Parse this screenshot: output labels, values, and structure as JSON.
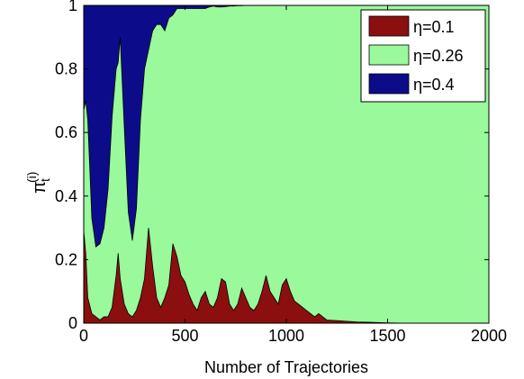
{
  "chart_data": {
    "type": "area",
    "stacked": true,
    "xlabel": "Number of Trajectories",
    "ylabel": "π",
    "ylabel_sub": "t",
    "ylabel_sup": "(i)",
    "xlim": [
      0,
      2000
    ],
    "ylim": [
      0,
      1
    ],
    "xticks": [
      0,
      500,
      1000,
      1500,
      2000
    ],
    "yticks": [
      0,
      0.2,
      0.4,
      0.6,
      0.8,
      1
    ],
    "ytick_labels": [
      "0",
      "0.2",
      "0.4",
      "0.6",
      "0.8",
      "1"
    ],
    "grid": false,
    "legend_position": "top-right",
    "x": [
      0,
      10,
      20,
      40,
      60,
      80,
      100,
      120,
      140,
      160,
      170,
      180,
      200,
      220,
      240,
      260,
      280,
      300,
      320,
      340,
      360,
      380,
      400,
      420,
      440,
      460,
      480,
      500,
      520,
      540,
      560,
      580,
      600,
      620,
      640,
      660,
      680,
      700,
      720,
      740,
      760,
      780,
      800,
      820,
      840,
      860,
      880,
      900,
      920,
      940,
      960,
      980,
      1000,
      1020,
      1040,
      1060,
      1080,
      1100,
      1120,
      1140,
      1160,
      1180,
      1200,
      1250,
      1300,
      1350,
      1400,
      1450,
      1500,
      1600,
      1800,
      2000
    ],
    "series": [
      {
        "name": "η=0.1",
        "color": "#8b0f0f",
        "values": [
          0.29,
          0.22,
          0.08,
          0.03,
          0.02,
          0.01,
          0.02,
          0.02,
          0.05,
          0.15,
          0.22,
          0.14,
          0.06,
          0.03,
          0.02,
          0.04,
          0.08,
          0.14,
          0.3,
          0.18,
          0.08,
          0.05,
          0.08,
          0.12,
          0.25,
          0.21,
          0.15,
          0.13,
          0.09,
          0.06,
          0.04,
          0.08,
          0.1,
          0.06,
          0.05,
          0.08,
          0.14,
          0.13,
          0.06,
          0.04,
          0.06,
          0.11,
          0.08,
          0.05,
          0.04,
          0.06,
          0.1,
          0.15,
          0.1,
          0.08,
          0.06,
          0.12,
          0.14,
          0.1,
          0.07,
          0.06,
          0.05,
          0.04,
          0.03,
          0.02,
          0.03,
          0.02,
          0.01,
          0.008,
          0.006,
          0.004,
          0.003,
          0.002,
          0.001,
          0.0,
          0.0,
          0.0
        ]
      },
      {
        "name": "η=0.26",
        "color": "#99f99b",
        "values": [
          0.38,
          0.48,
          0.56,
          0.3,
          0.22,
          0.24,
          0.28,
          0.4,
          0.6,
          0.65,
          0.6,
          0.76,
          0.56,
          0.32,
          0.24,
          0.32,
          0.56,
          0.66,
          0.56,
          0.74,
          0.86,
          0.89,
          0.84,
          0.84,
          0.72,
          0.78,
          0.84,
          0.86,
          0.9,
          0.93,
          0.95,
          0.91,
          0.89,
          0.935,
          0.948,
          0.915,
          0.855,
          0.866,
          0.938,
          0.958,
          0.939,
          0.889,
          0.92,
          0.95,
          0.96,
          0.94,
          0.9,
          0.85,
          0.9,
          0.92,
          0.94,
          0.88,
          0.86,
          0.9,
          0.93,
          0.94,
          0.95,
          0.96,
          0.97,
          0.98,
          0.97,
          0.98,
          0.99,
          0.992,
          0.994,
          0.996,
          0.997,
          0.998,
          0.999,
          1.0,
          1.0,
          1.0
        ]
      },
      {
        "name": "η=0.4",
        "color": "#0c0c8a",
        "values": [
          0.33,
          0.3,
          0.36,
          0.67,
          0.76,
          0.75,
          0.7,
          0.58,
          0.35,
          0.2,
          0.18,
          0.1,
          0.38,
          0.65,
          0.74,
          0.64,
          0.36,
          0.2,
          0.14,
          0.08,
          0.06,
          0.06,
          0.08,
          0.04,
          0.03,
          0.01,
          0.01,
          0.01,
          0.01,
          0.01,
          0.01,
          0.01,
          0.01,
          0.005,
          0.002,
          0.005,
          0.005,
          0.004,
          0.002,
          0.002,
          0.001,
          0.001,
          0.0,
          0.0,
          0.0,
          0.0,
          0.0,
          0.0,
          0.0,
          0.0,
          0.0,
          0.0,
          0.0,
          0.0,
          0.0,
          0.0,
          0.0,
          0.0,
          0.0,
          0.0,
          0.0,
          0.0,
          0.0,
          0.0,
          0.0,
          0.0,
          0.0,
          0.0,
          0.0,
          0.0,
          0.0,
          0.0
        ]
      }
    ]
  }
}
